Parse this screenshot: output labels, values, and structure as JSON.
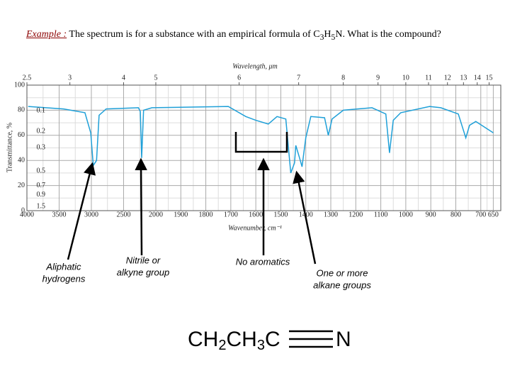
{
  "question": {
    "lead": "Example :",
    "text_1": "The spectrum is for a substance with an empirical formula of C",
    "sub_1": "3",
    "text_2": "H",
    "sub_2": "5",
    "text_3": "N. What is the compound?"
  },
  "chart_data": {
    "type": "line",
    "x2_label": "Wavelength, μm",
    "x_label": "Wavenumber, cm⁻¹",
    "y_label": "Transmittance, %",
    "x": [
      3980,
      3430,
      3100,
      3010,
      2970,
      2920,
      2880,
      2770,
      2270,
      2240,
      2220,
      2190,
      2060,
      1710,
      1640,
      1600,
      1550,
      1515,
      1480,
      1460,
      1445,
      1440,
      1425,
      1415,
      1400,
      1380,
      1325,
      1310,
      1295,
      1250,
      1135,
      1080,
      1065,
      1050,
      1020,
      905,
      860,
      790,
      760,
      745,
      720,
      650
    ],
    "values": [
      83,
      81,
      78,
      62,
      36,
      40,
      76,
      81,
      82,
      79,
      42,
      80,
      82,
      83,
      75,
      72,
      69,
      75,
      73,
      30,
      38,
      52,
      42,
      35,
      58,
      75,
      74,
      60,
      73,
      80,
      82,
      77,
      46,
      72,
      78,
      83,
      82,
      77,
      58,
      68,
      71,
      62
    ],
    "color": "#1fa0d8",
    "xlim": [
      4000,
      620
    ],
    "xticks": [
      4000,
      3500,
      3000,
      2500,
      2000,
      1900,
      1800,
      1700,
      1600,
      1500,
      1400,
      1300,
      1200,
      1100,
      1000,
      900,
      800,
      700,
      650
    ],
    "x2ticks": [
      2.5,
      3,
      4,
      5,
      6,
      7,
      8,
      9,
      10,
      11,
      12,
      13,
      14,
      15
    ],
    "ylim": [
      0,
      100
    ],
    "yticks": [
      0,
      20,
      40,
      60,
      80,
      100
    ],
    "absorbance_ticks": [
      0.1,
      0.2,
      0.3,
      0.5,
      0.7,
      0.9,
      1.5
    ],
    "grid": true
  },
  "annotations": {
    "aliphatic_1": "Aliphatic",
    "aliphatic_2": "hydrogens",
    "nitrile_1": "Nitrile or",
    "nitrile_2": "alkyne group",
    "aromatics": "No aromatics",
    "alkane_1": "One or more",
    "alkane_2": "alkane groups"
  },
  "formula": {
    "p1": "CH",
    "s1": "2",
    "p2": "CH",
    "s2": "3",
    "p3": "C",
    "p4": "N"
  }
}
